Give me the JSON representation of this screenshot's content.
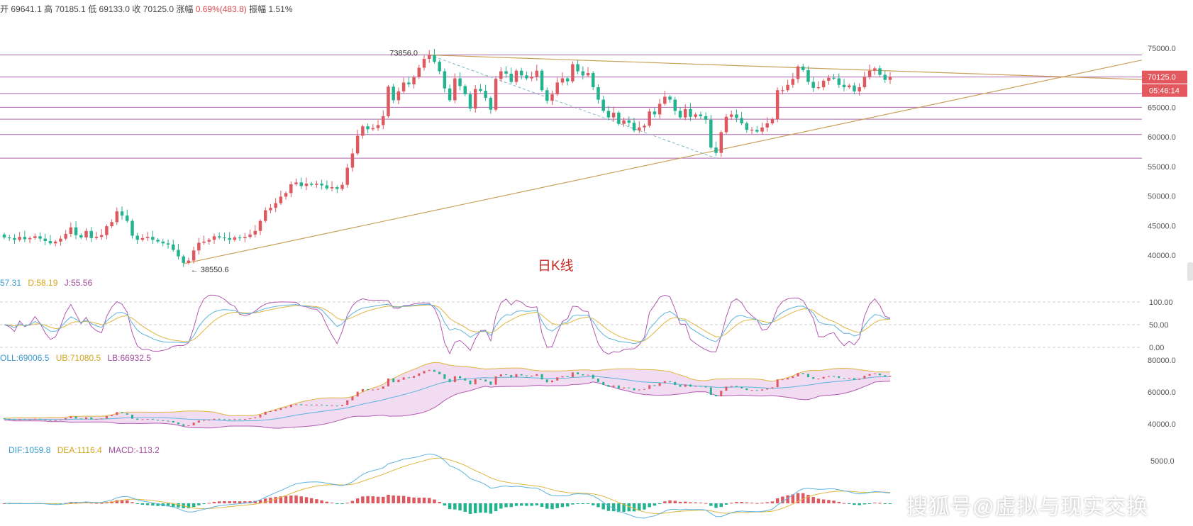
{
  "header": {
    "open_label": "开",
    "open": "69641.1",
    "high_label": "高",
    "high": "70185.1",
    "low_label": "低",
    "low": "69133.0",
    "close_label": "收",
    "close": "70125.0",
    "change_label": "涨幅",
    "change": "0.69%(483.8)",
    "amp_label": "振幅",
    "amp": "1.51%"
  },
  "caption": "日K线",
  "watermark": "搜狐号@虚拟与现实交换",
  "price_badge": "70125.0",
  "countdown_badge": "05:46:14",
  "kdj_legend": {
    "k": "57.31",
    "d": "D:58.19",
    "j": "J:55.56"
  },
  "boll_legend": {
    "mid": "OLL:69006.5",
    "ub": "UB:71080.5",
    "lb": "LB:66932.5"
  },
  "macd_legend": {
    "dif": "DIF:1059.8",
    "dea": "DEA:1116.4",
    "macd": "MACD:-113.2"
  },
  "colors": {
    "up": "#dd5960",
    "down": "#24b38f",
    "trend": "#c9a15c",
    "hline": "#a04a9e",
    "k": "#5fb3de",
    "d": "#e0b640",
    "j": "#b25ab0",
    "boll_fill": "#f2dcf2"
  },
  "chart_data": [
    {
      "type": "candlestick",
      "title": "",
      "ylim": [
        36000,
        76500
      ],
      "yticks": [
        "75000.0",
        "70000.0",
        "65000.0",
        "60000.0",
        "55000.0",
        "50000.0",
        "45000.0",
        "40000.0"
      ],
      "annotations": [
        {
          "text": "73856.0",
          "value": 73856
        },
        {
          "text": "38550.6",
          "value": 38550.6
        }
      ],
      "horizontal_levels": [
        73856,
        70125,
        67350,
        65000,
        63000,
        60400,
        56400
      ],
      "candles_close": [
        43000,
        42900,
        42600,
        43100,
        42700,
        42900,
        43200,
        42800,
        42400,
        42000,
        42300,
        42800,
        43600,
        44700,
        43400,
        43000,
        44100,
        42900,
        43100,
        43400,
        44900,
        45600,
        47400,
        46700,
        45800,
        43300,
        42600,
        42900,
        43100,
        42600,
        42300,
        42000,
        41800,
        40900,
        39800,
        38700,
        39100,
        40800,
        42100,
        42300,
        42600,
        43200,
        43000,
        42900,
        42600,
        43000,
        42900,
        43100,
        43500,
        44100,
        45800,
        47600,
        48000,
        48800,
        49900,
        50500,
        52000,
        52300,
        51700,
        52100,
        51900,
        52100,
        51800,
        51300,
        51500,
        51200,
        51900,
        54800,
        57200,
        60200,
        61800,
        61300,
        61500,
        62000,
        63500,
        68500,
        66200,
        67700,
        69200,
        68900,
        70100,
        71700,
        73200,
        73856,
        72700,
        71100,
        68200,
        66200,
        69900,
        68600,
        67200,
        64800,
        68100,
        67800,
        66600,
        64600,
        69800,
        71100,
        70700,
        69300,
        71200,
        70400,
        69900,
        70200,
        71200,
        67900,
        66100,
        67200,
        69200,
        69900,
        69400,
        72300,
        71100,
        70400,
        70800,
        68400,
        66300,
        64400,
        63300,
        64100,
        62200,
        62800,
        62400,
        61100,
        61600,
        61900,
        64300,
        63800,
        65600,
        66800,
        66300,
        64400,
        63300,
        64700,
        63400,
        63800,
        63500,
        62900,
        58200,
        57300,
        60800,
        63400,
        63800,
        63200,
        62300,
        61200,
        61200,
        60900,
        61600,
        62300,
        63000,
        67900,
        67900,
        68800,
        69800,
        71900,
        71300,
        69300,
        68300,
        68400,
        69500,
        70000,
        69900,
        68800,
        68400,
        68700,
        67700,
        68400,
        70200,
        71200,
        71600,
        70500,
        69641,
        70125
      ]
    },
    {
      "type": "line",
      "name": "KDJ",
      "ylim": [
        -10,
        110
      ],
      "yticks": [
        "100.00",
        "50.00",
        "0.00"
      ]
    },
    {
      "type": "area",
      "name": "BOLL",
      "ylim": [
        35000,
        82000
      ],
      "yticks": [
        "80000.0",
        "60000.0",
        "40000.0"
      ]
    },
    {
      "type": "bar",
      "name": "MACD",
      "yticks": [
        "5000.0"
      ]
    }
  ]
}
